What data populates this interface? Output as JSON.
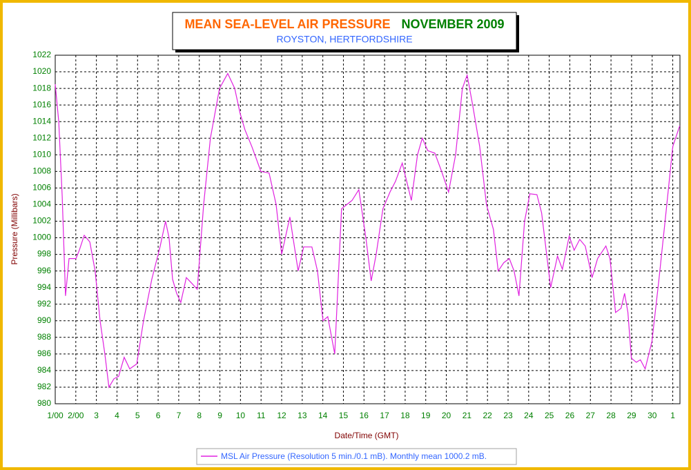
{
  "chart_data": {
    "type": "line",
    "title": "MEAN SEA-LEVEL AIR PRESSURE",
    "title_date": "NOVEMBER 2009",
    "subtitle": "ROYSTON, HERTFORDSHIRE",
    "x_label": "Date/Time (GMT)",
    "y_label": "Pressure (Millibars)",
    "grid": true,
    "x": [
      1.0,
      1.17,
      1.34,
      1.5,
      1.67,
      2.01,
      2.17,
      2.41,
      2.68,
      2.94,
      3.18,
      3.41,
      3.61,
      3.85,
      4.08,
      4.35,
      4.62,
      4.96,
      5.29,
      5.69,
      6.1,
      6.36,
      6.53,
      6.7,
      6.9,
      7.1,
      7.37,
      7.64,
      7.9,
      8.21,
      8.54,
      8.98,
      9.38,
      9.72,
      9.98,
      10.22,
      10.55,
      10.99,
      11.39,
      11.73,
      12.0,
      12.4,
      12.8,
      13.07,
      13.47,
      13.74,
      14.01,
      14.24,
      14.58,
      14.91,
      15.42,
      15.75,
      16.09,
      16.35,
      16.59,
      16.92,
      17.26,
      17.53,
      17.86,
      18.3,
      18.6,
      18.83,
      19.1,
      19.44,
      19.77,
      20.11,
      20.45,
      20.78,
      21.01,
      21.28,
      21.62,
      21.95,
      22.29,
      22.52,
      22.79,
      23.06,
      23.29,
      23.53,
      23.8,
      24.06,
      24.4,
      24.63,
      25.07,
      25.4,
      25.64,
      25.97,
      26.21,
      26.48,
      26.75,
      27.08,
      27.35,
      27.75,
      27.95,
      28.22,
      28.49,
      28.66,
      28.82,
      28.99,
      29.23,
      29.43,
      29.66,
      29.99,
      30.33,
      30.67,
      31.0,
      31.34
    ],
    "series": [
      {
        "name": "MSL Air Pressure (Resolution 5 min./0.1 mB). Monthly mean 1000.2 mB.",
        "color": "#e020e0",
        "values": [
          1018.5,
          1014,
          1005,
          993,
          997.5,
          997.5,
          998.5,
          1000.3,
          999.5,
          996,
          990,
          986,
          982,
          983,
          983.3,
          985.6,
          984.2,
          984.8,
          990,
          995,
          999,
          1002,
          1000,
          995,
          993.3,
          992.2,
          995.2,
          994.5,
          993.8,
          1004,
          1012,
          1018,
          1019.8,
          1018,
          1015,
          1013,
          1011,
          1008,
          1007.8,
          1004,
          998,
          1002.5,
          996,
          998.9,
          998.9,
          996,
          990,
          990.5,
          986,
          1003.5,
          1004.5,
          1005.8,
          1000,
          994.8,
          998,
          1003.5,
          1005.5,
          1006.8,
          1009,
          1004.5,
          1010,
          1012,
          1010.5,
          1010.2,
          1008,
          1005.5,
          1010,
          1018,
          1019.6,
          1016,
          1011,
          1004,
          1001,
          996,
          997,
          997.5,
          996,
          993,
          1002,
          1005.3,
          1005.2,
          1003,
          994,
          997.8,
          996.2,
          1000.2,
          998.5,
          999.8,
          999,
          995.2,
          997.5,
          999,
          997.5,
          991,
          991.5,
          993.3,
          991,
          985.5,
          985,
          985.3,
          984.2,
          987.5,
          995,
          1003,
          1011,
          1013.5
        ]
      }
    ],
    "xlim": [
      1,
      31.35
    ],
    "xticks": [
      {
        "value": 1,
        "label": "1/00"
      },
      {
        "value": 2,
        "label": "2/00"
      },
      3,
      4,
      5,
      6,
      7,
      8,
      9,
      10,
      11,
      12,
      13,
      14,
      15,
      16,
      17,
      18,
      19,
      20,
      21,
      22,
      23,
      24,
      25,
      26,
      27,
      28,
      29,
      30,
      {
        "value": 31,
        "label": "1"
      }
    ],
    "ylim": [
      980,
      1022
    ],
    "yticks": [
      980,
      982,
      984,
      986,
      988,
      990,
      992,
      994,
      996,
      998,
      1000,
      1002,
      1004,
      1006,
      1008,
      1010,
      1012,
      1014,
      1016,
      1018,
      1020,
      1022
    ]
  }
}
